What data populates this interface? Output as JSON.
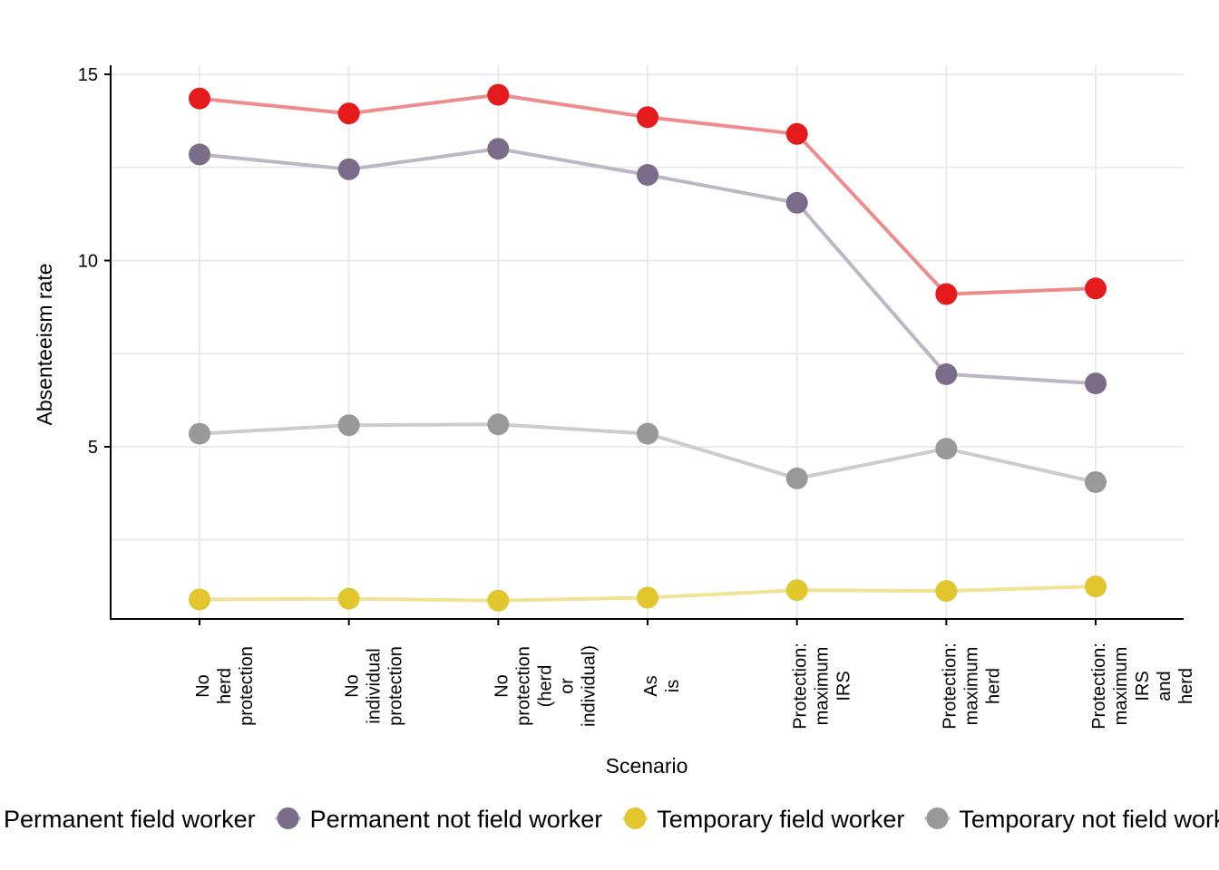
{
  "chart_data": {
    "type": "line",
    "xlabel": "Scenario",
    "ylabel": "Absenteeism rate",
    "ylim": [
      0.2,
      15.2
    ],
    "yticks": [
      5,
      10,
      15
    ],
    "grid": true,
    "legend_position": "bottom",
    "categories": [
      [
        "No",
        "herd",
        "protection"
      ],
      [
        "No",
        "individual",
        "protection"
      ],
      [
        "No",
        "protection",
        "(herd",
        "or",
        "individual)"
      ],
      [
        "As",
        "is"
      ],
      [
        "Protection:",
        "maximum",
        "IRS"
      ],
      [
        "Protection:",
        "maximum",
        "herd"
      ],
      [
        "Protection:",
        "maximum",
        "IRS",
        "and",
        "herd"
      ]
    ],
    "series": [
      {
        "name": "Permanent field worker",
        "color": "#e41a1c",
        "line_color": "#ee8c8d",
        "values": [
          14.35,
          13.95,
          14.45,
          13.85,
          13.4,
          9.1,
          9.25
        ]
      },
      {
        "name": "Permanent not field worker",
        "color": "#7b6d89",
        "line_color": "#bdb6c4",
        "values": [
          12.85,
          12.45,
          13.0,
          12.3,
          11.55,
          6.95,
          6.7
        ]
      },
      {
        "name": "Temporary field worker",
        "color": "#e1c62d",
        "line_color": "#efe396",
        "values": [
          0.9,
          0.92,
          0.87,
          0.95,
          1.15,
          1.13,
          1.25
        ]
      },
      {
        "name": "Temporary not field worker",
        "color": "#999999",
        "line_color": "#cccccc",
        "values": [
          5.35,
          5.58,
          5.6,
          5.35,
          4.15,
          4.95,
          4.05
        ]
      }
    ]
  }
}
